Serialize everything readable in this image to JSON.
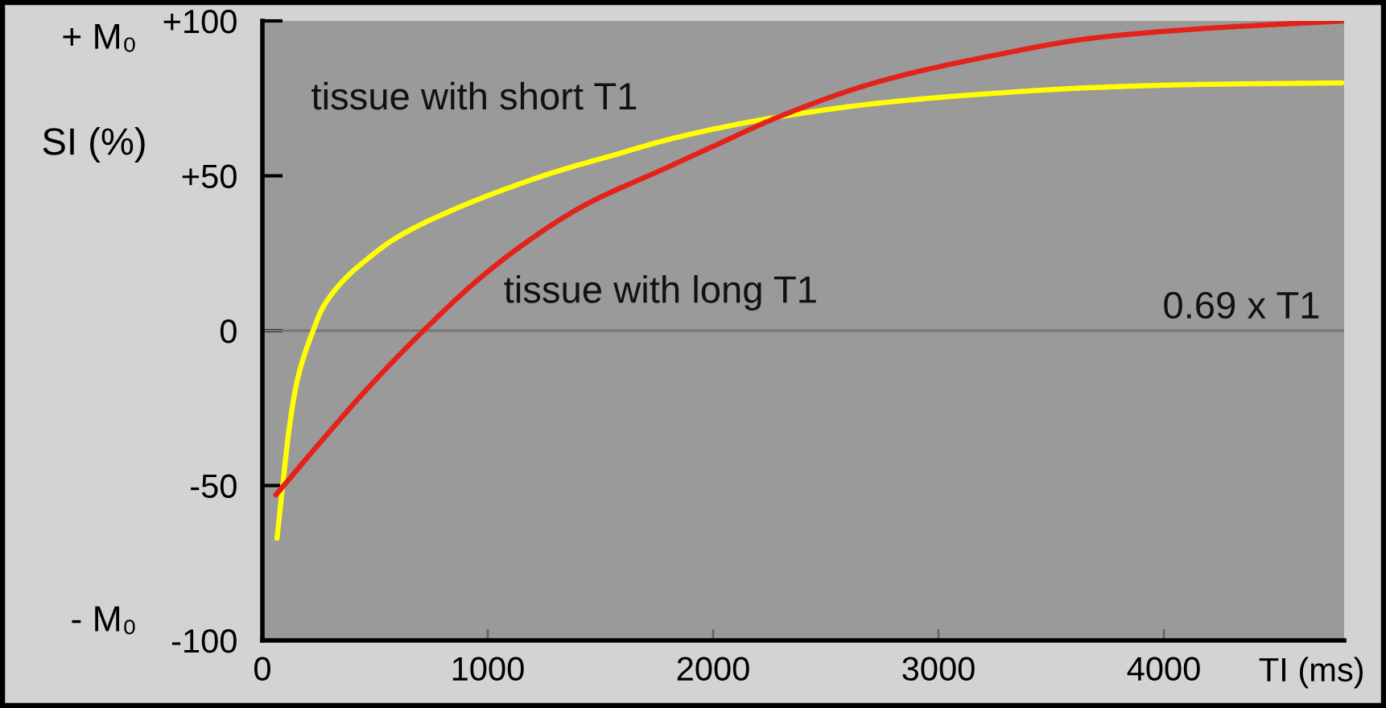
{
  "chart_data": {
    "type": "line",
    "xlabel": "TI (ms)",
    "ylabel": "SI (%)",
    "series": [
      {
        "name": "tissue with short T1",
        "color": "#ffff00",
        "x": [
          65,
          90,
          120,
          155,
          225,
          265,
          310,
          370,
          430,
          595,
          830,
          1070,
          1310,
          1550,
          1790,
          2030,
          2290,
          2740,
          3220,
          3690,
          4170,
          4790
        ],
        "values": [
          -67,
          -50,
          -31,
          -16,
          0,
          7,
          12,
          17,
          21,
          30,
          38.5,
          45.5,
          51.5,
          56.5,
          61.5,
          65.5,
          69,
          73.5,
          76.5,
          78.5,
          79.5,
          80
        ]
      },
      {
        "name": "tissue with long T1",
        "color": "#e3231b",
        "x": [
          60,
          240,
          475,
          715,
          950,
          1190,
          1430,
          1790,
          2030,
          2290,
          2740,
          3220,
          3690,
          4170,
          4800
        ],
        "values": [
          -53,
          -37.5,
          -18,
          0,
          16,
          29.5,
          40.5,
          52.5,
          60.5,
          69,
          80.5,
          88.5,
          94.5,
          97.5,
          100
        ]
      }
    ],
    "xlim": [
      0,
      4800
    ],
    "xticks": [
      0,
      1000,
      2000,
      3000,
      4000
    ],
    "ylim": [
      -100,
      100
    ],
    "yticks": [
      {
        "value": 100,
        "label": "+100"
      },
      {
        "value": 50,
        "label": "+50"
      },
      0,
      -50,
      -100
    ],
    "annotations": [
      "+ M₀",
      "- M₀"
    ],
    "ref_lines": [
      {
        "axis": "y",
        "value": 0,
        "label": "0.69 x T1",
        "color": "#777777"
      }
    ],
    "line_style": "solid"
  }
}
